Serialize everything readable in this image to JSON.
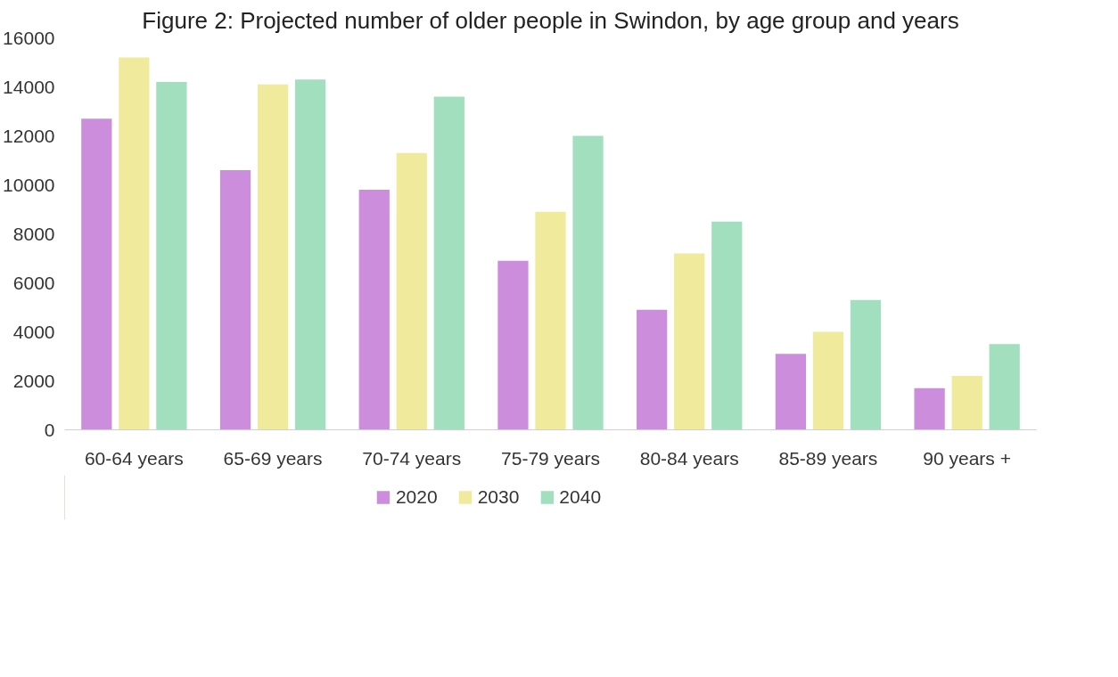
{
  "chart_data": {
    "type": "bar",
    "title": "Figure 2: Projected number of older people in Swindon, by age group and years",
    "categories": [
      "60-64 years",
      "65-69 years",
      "70-74 years",
      "75-79 years",
      "80-84 years",
      "85-89 years",
      "90 years +"
    ],
    "series": [
      {
        "name": "2020",
        "color": "#cc8ddc",
        "values": [
          12700,
          10600,
          9800,
          6900,
          4900,
          3100,
          1700
        ]
      },
      {
        "name": "2030",
        "color": "#f0eb9c",
        "values": [
          15200,
          14100,
          11300,
          8900,
          7200,
          4000,
          2200
        ]
      },
      {
        "name": "2040",
        "color": "#a2dfbe",
        "values": [
          14200,
          14300,
          13600,
          12000,
          8500,
          5300,
          3500
        ]
      }
    ],
    "ylim": [
      0,
      16000
    ],
    "yticks": [
      0,
      2000,
      4000,
      6000,
      8000,
      10000,
      12000,
      14000,
      16000
    ],
    "grid": false,
    "legend": "bottom"
  }
}
